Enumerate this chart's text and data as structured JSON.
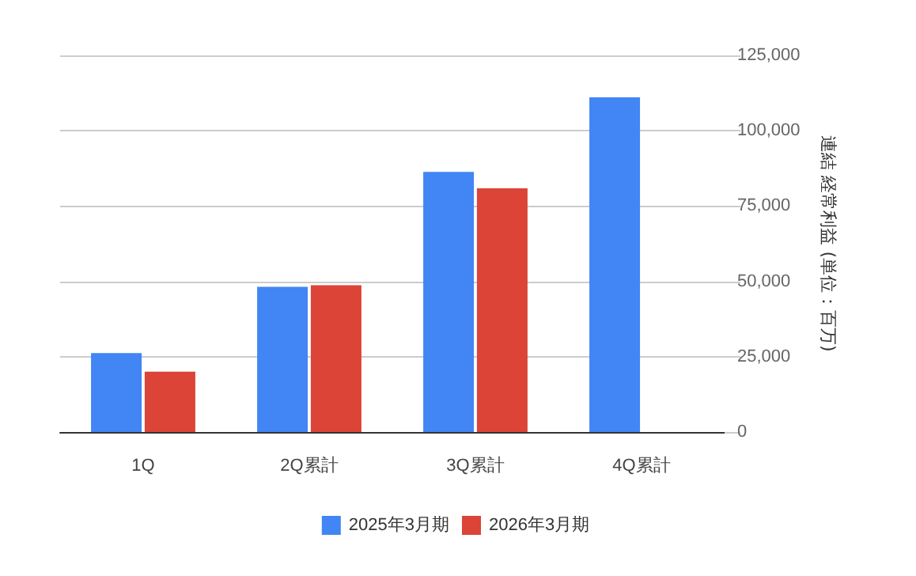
{
  "chart_data": {
    "type": "bar",
    "categories": [
      "1Q",
      "2Q累計",
      "3Q累計",
      "4Q累計"
    ],
    "y2label": "連結 経常利益 (単位：百万)",
    "series": [
      {
        "name": "2025年3月期",
        "color": "#4285f4",
        "values": [
          26200,
          48200,
          86300,
          111100
        ],
        "axis": "y2"
      },
      {
        "name": "2026年3月期",
        "color": "#db4437",
        "values": [
          20000,
          48700,
          80900,
          null
        ],
        "axis": "y2"
      }
    ],
    "y2lim": [
      0,
      125000
    ],
    "y2ticks": [
      0,
      {
        "value": 25000,
        "label": "25,000"
      },
      {
        "value": 50000,
        "label": "50,000"
      },
      {
        "value": 75000,
        "label": "75,000"
      },
      {
        "value": 100000,
        "label": "100,000"
      },
      {
        "value": 125000,
        "label": "125,000"
      }
    ],
    "grid": "y",
    "legend": "bottom"
  }
}
